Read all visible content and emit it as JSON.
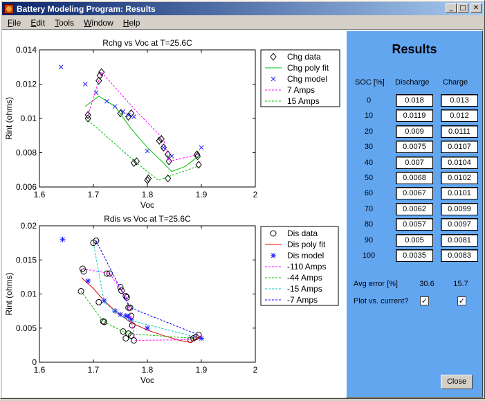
{
  "window": {
    "title": "Battery Modeling Program: Results",
    "icon": "matlab-icon"
  },
  "menu": [
    "File",
    "Edit",
    "Tools",
    "Window",
    "Help"
  ],
  "menu_underline": [
    "F",
    "E",
    "T",
    "W",
    "H"
  ],
  "title_buttons": {
    "minimize": "_",
    "maximize": "□",
    "close": "✕"
  },
  "results": {
    "title": "Results",
    "col_soc": "SOC [%]",
    "col_discharge": "Discharge",
    "col_charge": "Charge",
    "rows": [
      {
        "soc": "0",
        "discharge": "0.018",
        "charge": "0.013"
      },
      {
        "soc": "10",
        "discharge": "0.0119",
        "charge": "0.012"
      },
      {
        "soc": "20",
        "discharge": "0.009",
        "charge": "0.0111"
      },
      {
        "soc": "30",
        "discharge": "0.0075",
        "charge": "0.0107"
      },
      {
        "soc": "40",
        "discharge": "0.007",
        "charge": "0.0104"
      },
      {
        "soc": "50",
        "discharge": "0.0068",
        "charge": "0.0102"
      },
      {
        "soc": "60",
        "discharge": "0.0067",
        "charge": "0.0101"
      },
      {
        "soc": "70",
        "discharge": "0.0062",
        "charge": "0.0099"
      },
      {
        "soc": "80",
        "discharge": "0.0057",
        "charge": "0.0097"
      },
      {
        "soc": "90",
        "discharge": "0.005",
        "charge": "0.0081"
      },
      {
        "soc": "100",
        "discharge": "0.0035",
        "charge": "0.0083"
      }
    ],
    "avg_error_label": "Avg error [%]",
    "avg_error_discharge": "30.6",
    "avg_error_charge": "15.7",
    "plot_vs_current_label": "Plot vs. current?",
    "plot_discharge_checked": "✓",
    "plot_charge_checked": "✓",
    "close_label": "Close",
    "background": "#63a6f0"
  },
  "chart_data": [
    {
      "type": "scatter",
      "title": "Rchg vs Voc at T=25.6C",
      "xlabel": "Voc",
      "ylabel": "Rint (ohms)",
      "xlim": [
        1.6,
        2.0
      ],
      "ylim": [
        0.006,
        0.014
      ],
      "xticks": [
        "1.6",
        "1.7",
        "1.8",
        "1.9",
        "2"
      ],
      "yticks": [
        "0.006",
        "0.008",
        "0.01",
        "0.012",
        "0.014"
      ],
      "legend_position": "outside-right",
      "legend": [
        "Chg data",
        "Chg poly fit",
        "Chg model",
        "7 Amps",
        "15 Amps"
      ],
      "series": [
        {
          "name": "Chg data",
          "marker": "diamond",
          "color": "#000000",
          "x": [
            1.71,
            1.712,
            1.715,
            1.69,
            1.69,
            1.775,
            1.78,
            1.822,
            1.826,
            1.83,
            1.838,
            1.84,
            1.75,
            1.765,
            1.77,
            1.8,
            1.802,
            1.838,
            1.892,
            1.893,
            1.895
          ],
          "y": [
            0.0122,
            0.0125,
            0.0127,
            0.0102,
            0.01,
            0.0074,
            0.0075,
            0.0087,
            0.0088,
            0.0083,
            0.0079,
            0.0075,
            0.0103,
            0.0101,
            0.0103,
            0.0064,
            0.0065,
            0.0065,
            0.0079,
            0.0078,
            0.0073
          ]
        },
        {
          "name": "Chg poly fit",
          "line": "solid",
          "color": "#00c000",
          "x": [
            1.685,
            1.71,
            1.74,
            1.77,
            1.8,
            1.83,
            1.845,
            1.87,
            1.895
          ],
          "y": [
            0.0107,
            0.0113,
            0.0107,
            0.0094,
            0.0083,
            0.0074,
            0.0069,
            0.0072,
            0.0078
          ]
        },
        {
          "name": "Chg model",
          "marker": "x",
          "color": "#2020ff",
          "x": [
            1.64,
            1.685,
            1.705,
            1.725,
            1.74,
            1.755,
            1.765,
            1.775,
            1.8,
            1.83,
            1.845,
            1.9
          ],
          "y": [
            0.013,
            0.012,
            0.0115,
            0.011,
            0.0107,
            0.0104,
            0.0102,
            0.0101,
            0.0081,
            0.0083,
            0.0078,
            0.0083
          ]
        },
        {
          "name": "7 Amps",
          "line": "dashed",
          "color": "#ff00ff",
          "x": [
            1.69,
            1.715,
            1.78,
            1.83,
            1.84,
            1.895
          ],
          "y": [
            0.0102,
            0.0127,
            0.0104,
            0.0088,
            0.0075,
            0.0079
          ]
        },
        {
          "name": "15 Amps",
          "line": "dashed",
          "color": "#00c000",
          "x": [
            1.69,
            1.78,
            1.82,
            1.838,
            1.893
          ],
          "y": [
            0.0099,
            0.0074,
            0.0064,
            0.0066,
            0.0072
          ]
        }
      ]
    },
    {
      "type": "scatter",
      "title": "Rdis vs Voc at T=25.6C",
      "xlabel": "Voc",
      "ylabel": "Rint (ohms)",
      "xlim": [
        1.6,
        2.0
      ],
      "ylim": [
        0,
        0.02
      ],
      "xticks": [
        "1.6",
        "1.7",
        "1.8",
        "1.9",
        "2"
      ],
      "yticks": [
        "0",
        "0.005",
        "0.01",
        "0.015",
        "0.02"
      ],
      "legend_position": "outside-right",
      "legend": [
        "Dis data",
        "Dis poly fit",
        "Dis model",
        "-110 Amps",
        "-44 Amps",
        "-15 Amps",
        "-7 Amps"
      ],
      "series": [
        {
          "name": "Dis data",
          "marker": "circle",
          "color": "#000000",
          "x": [
            1.68,
            1.682,
            1.677,
            1.7,
            1.705,
            1.71,
            1.718,
            1.72,
            1.725,
            1.73,
            1.75,
            1.752,
            1.76,
            1.762,
            1.765,
            1.768,
            1.77,
            1.772,
            1.755,
            1.765,
            1.775,
            1.76,
            1.88,
            1.885,
            1.89,
            1.895,
            1.77
          ],
          "y": [
            0.0137,
            0.0133,
            0.0104,
            0.0175,
            0.0178,
            0.0088,
            0.006,
            0.0059,
            0.013,
            0.013,
            0.011,
            0.0105,
            0.0097,
            0.0095,
            0.008,
            0.008,
            0.0068,
            0.0054,
            0.0045,
            0.0042,
            0.0032,
            0.0035,
            0.0033,
            0.0035,
            0.0037,
            0.004,
            0.0039
          ]
        },
        {
          "name": "Dis poly fit",
          "line": "solid",
          "color": "#e00000",
          "x": [
            1.678,
            1.7,
            1.72,
            1.745,
            1.77,
            1.8,
            1.83,
            1.86,
            1.88,
            1.9
          ],
          "y": [
            0.0124,
            0.0108,
            0.009,
            0.0072,
            0.0058,
            0.0047,
            0.0039,
            0.0032,
            0.0029,
            0.0039
          ]
        },
        {
          "name": "Dis model",
          "marker": "star",
          "color": "#2020ff",
          "x": [
            1.643,
            1.69,
            1.72,
            1.74,
            1.75,
            1.76,
            1.765,
            1.77,
            1.8,
            1.9
          ],
          "y": [
            0.018,
            0.0119,
            0.009,
            0.0075,
            0.007,
            0.0068,
            0.0067,
            0.0062,
            0.005,
            0.0035
          ]
        },
        {
          "name": "-110 Amps",
          "line": "dashed",
          "color": "#ff00ff",
          "x": [
            1.68,
            1.73,
            1.76,
            1.778,
            1.88,
            1.895
          ],
          "y": [
            0.0137,
            0.013,
            0.0097,
            0.0032,
            0.0033,
            0.004
          ]
        },
        {
          "name": "-44 Amps",
          "line": "dashed",
          "color": "#00c000",
          "x": [
            1.677,
            1.718,
            1.755,
            1.765,
            1.885
          ],
          "y": [
            0.0104,
            0.006,
            0.0045,
            0.0042,
            0.0035
          ]
        },
        {
          "name": "-15 Amps",
          "line": "dashed",
          "color": "#00c0c0",
          "x": [
            1.7,
            1.72,
            1.75,
            1.765,
            1.89
          ],
          "y": [
            0.0175,
            0.0088,
            0.0068,
            0.0062,
            0.0037
          ]
        },
        {
          "name": "-7 Amps",
          "line": "dashed",
          "color": "#0000ff",
          "x": [
            1.705,
            1.752,
            1.768,
            1.895
          ],
          "y": [
            0.0178,
            0.0105,
            0.008,
            0.004
          ]
        }
      ]
    }
  ]
}
